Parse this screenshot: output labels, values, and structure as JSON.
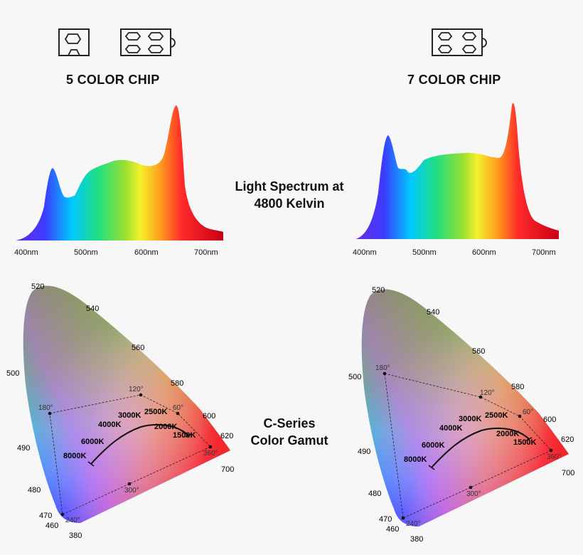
{
  "left": {
    "chip_title": "5 COLOR CHIP",
    "spectrum_ticks": [
      "400nm",
      "500nm",
      "600nm",
      "700nm"
    ],
    "gamut": {
      "wavelength_labels": [
        "520",
        "540",
        "560",
        "580",
        "600",
        "620",
        "700",
        "500",
        "490",
        "480",
        "470",
        "460",
        "380"
      ],
      "hue_labels": [
        "180°",
        "120°",
        "60°",
        "360°",
        "300°",
        "240°"
      ],
      "cct_labels": [
        "3000K",
        "2500K",
        "4000K",
        "2000K",
        "6000K",
        "1500K",
        "8000K"
      ]
    }
  },
  "right": {
    "chip_title": "7 COLOR CHIP",
    "spectrum_ticks": [
      "400nm",
      "500nm",
      "600nm",
      "700nm"
    ],
    "gamut": {
      "wavelength_labels": [
        "520",
        "540",
        "560",
        "580",
        "600",
        "620",
        "700",
        "500",
        "490",
        "480",
        "470",
        "460",
        "380"
      ],
      "hue_labels": [
        "180°",
        "120°",
        "60°",
        "360°",
        "300°",
        "240°"
      ],
      "cct_labels": [
        "3000K",
        "2500K",
        "4000K",
        "2000K",
        "6000K",
        "1500K",
        "8000K"
      ]
    }
  },
  "center": {
    "spectrum_title_line1": "Light Spectrum at",
    "spectrum_title_line2": "4800 Kelvin",
    "gamut_title_line1": "C-Series",
    "gamut_title_line2": "Color Gamut"
  }
}
